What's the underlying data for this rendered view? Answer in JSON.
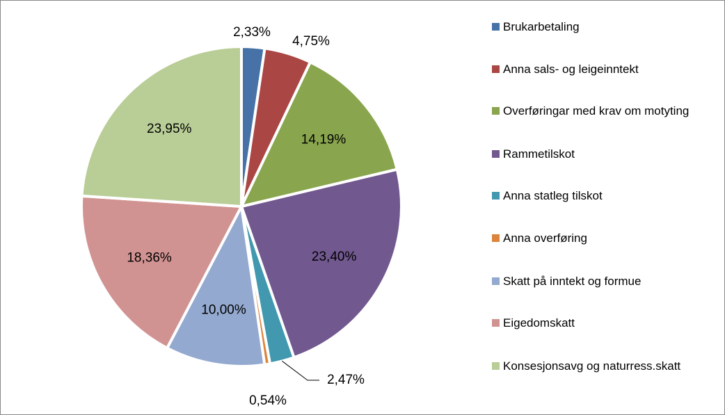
{
  "chart_data": {
    "type": "pie",
    "categories": [
      "Brukarbetaling",
      "Anna sals- og leigeinntekt",
      "Overføringar med krav om motyting",
      "Rammetilskot",
      "Anna statleg tilskot",
      "Anna overføring",
      "Skatt på inntekt og formue",
      "Eigedomskatt",
      "Konsesjonsavg og naturress.skatt"
    ],
    "values": [
      2.33,
      4.75,
      14.19,
      23.4,
      2.47,
      0.54,
      10.0,
      18.36,
      23.95
    ],
    "value_labels": [
      "2,33%",
      "4,75%",
      "14,19%",
      "23,40%",
      "2,47%",
      "0,54%",
      "10,00%",
      "18,36%",
      "23,95%"
    ],
    "colors": [
      "#4672a8",
      "#aa4643",
      "#89a54e",
      "#71588f",
      "#4198af",
      "#db843d",
      "#93a9cf",
      "#d19392",
      "#b9cd96"
    ],
    "legend": "right"
  }
}
